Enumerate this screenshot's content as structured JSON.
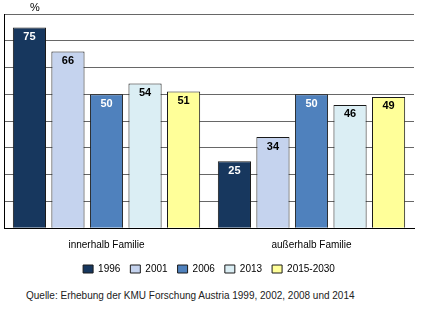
{
  "chart_data": {
    "type": "bar",
    "y_label": "%",
    "categories": [
      "innerhalb Familie",
      "außerhalb Familie"
    ],
    "series": [
      {
        "name": "1996",
        "color": "#17375e",
        "values": [
          75,
          25
        ]
      },
      {
        "name": "2001",
        "color": "#c5d3ee",
        "values": [
          66,
          34
        ]
      },
      {
        "name": "2006",
        "color": "#4f81bd",
        "values": [
          50,
          50
        ]
      },
      {
        "name": "2013",
        "color": "#dbeef4",
        "values": [
          54,
          46
        ]
      },
      {
        "name": "2015-2030",
        "color": "#ffff99",
        "values": [
          51,
          49
        ]
      }
    ],
    "ylim": [
      0,
      80
    ],
    "yticks": [
      0,
      10,
      20,
      30,
      40,
      50,
      60,
      70,
      80
    ],
    "grid": true,
    "legend": "bottom",
    "data_labels": true,
    "tick_labels": "x",
    "source": "Quelle: Erhebung der KMU Forschung Austria 1999, 2002, 2008 und 2014"
  }
}
